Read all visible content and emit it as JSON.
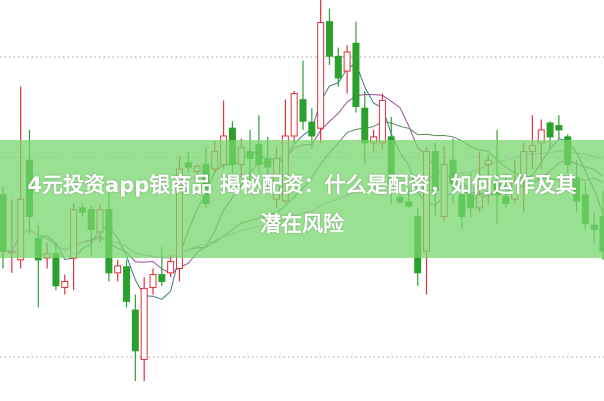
{
  "title": "4元投资app银商品 揭秘配资：什么是配资，如何运作及其潜在风险",
  "colors": {
    "up": "#e0303a",
    "down": "#2ca02c",
    "banner": "#78d66e",
    "grid": "#9a9a9a",
    "ma": [
      "#3a7a8a",
      "#9a4d9a",
      "#5a8a5a",
      "#e08ae0"
    ]
  },
  "chart_data": {
    "type": "candlestick",
    "grid": "horizontal dotted",
    "ma_periods": [
      5,
      10,
      20,
      40
    ],
    "candles": [
      [
        235,
        245,
        150,
        170
      ],
      [
        170,
        230,
        145,
        170
      ],
      [
        160,
        360,
        150,
        230
      ],
      [
        275,
        310,
        190,
        210
      ],
      [
        185,
        200,
        105,
        160
      ],
      [
        162,
        180,
        150,
        167
      ],
      [
        167,
        180,
        125,
        130
      ],
      [
        128,
        143,
        120,
        135
      ],
      [
        162,
        225,
        125,
        218
      ],
      [
        220,
        225,
        210,
        215
      ],
      [
        218,
        222,
        165,
        195
      ],
      [
        192,
        224,
        180,
        218
      ],
      [
        218,
        240,
        135,
        145
      ],
      [
        145,
        160,
        135,
        153
      ],
      [
        152,
        160,
        105,
        112
      ],
      [
        102,
        120,
        20,
        55
      ],
      [
        45,
        140,
        20,
        127
      ],
      [
        128,
        150,
        120,
        143
      ],
      [
        143,
        175,
        130,
        135
      ],
      [
        145,
        165,
        140,
        158
      ],
      [
        150,
        280,
        135,
        265
      ],
      [
        272,
        285,
        260,
        267
      ],
      [
        262,
        270,
        255,
        268
      ],
      [
        270,
        290,
        220,
        225
      ],
      [
        265,
        297,
        260,
        285
      ],
      [
        270,
        344,
        265,
        303
      ],
      [
        312,
        320,
        260,
        270
      ],
      [
        270,
        300,
        255,
        290
      ],
      [
        285,
        310,
        250,
        277
      ],
      [
        293,
        327,
        260,
        270
      ],
      [
        277,
        302,
        245,
        267
      ],
      [
        230,
        290,
        220,
        277
      ],
      [
        228,
        345,
        225,
        303
      ],
      [
        303,
        355,
        295,
        352
      ],
      [
        345,
        390,
        310,
        320
      ],
      [
        319,
        335,
        288,
        303
      ],
      [
        312,
        460,
        295,
        434
      ],
      [
        435,
        450,
        385,
        395
      ],
      [
        395,
        405,
        360,
        370
      ],
      [
        378,
        408,
        352,
        400
      ],
      [
        410,
        435,
        330,
        337
      ],
      [
        335,
        355,
        270,
        295
      ],
      [
        295,
        310,
        285,
        302
      ],
      [
        295,
        352,
        288,
        344
      ],
      [
        302,
        325,
        225,
        250
      ],
      [
        232,
        250,
        225,
        227
      ],
      [
        227,
        245,
        220,
        222
      ],
      [
        210,
        220,
        130,
        145
      ],
      [
        170,
        290,
        120,
        285
      ],
      [
        285,
        295,
        210,
        240
      ],
      [
        210,
        292,
        205,
        270
      ],
      [
        275,
        300,
        225,
        248
      ],
      [
        235,
        250,
        195,
        210
      ],
      [
        235,
        260,
        210,
        220
      ],
      [
        220,
        285,
        215,
        235
      ],
      [
        270,
        282,
        225,
        275
      ],
      [
        250,
        310,
        202,
        235
      ],
      [
        233,
        260,
        220,
        225
      ],
      [
        230,
        275,
        225,
        250
      ],
      [
        255,
        295,
        215,
        285
      ],
      [
        285,
        327,
        265,
        292
      ],
      [
        295,
        322,
        265,
        310
      ],
      [
        318,
        320,
        288,
        302
      ],
      [
        315,
        327,
        300,
        310
      ],
      [
        302,
        305,
        260,
        270
      ],
      [
        255,
        275,
        215,
        228
      ],
      [
        235,
        250,
        195,
        202
      ],
      [
        200,
        215,
        180,
        195
      ],
      [
        210,
        240,
        160,
        170
      ]
    ]
  }
}
